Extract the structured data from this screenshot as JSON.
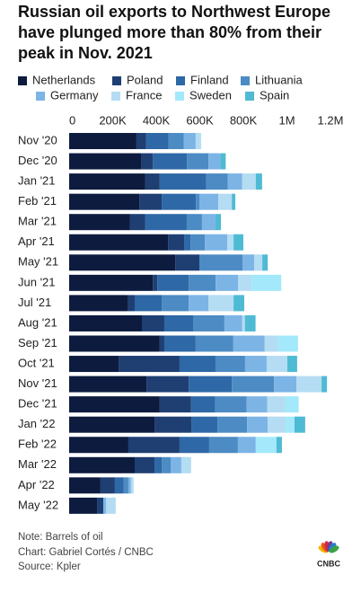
{
  "chart_data": {
    "type": "stacked-bar-horizontal",
    "title": "Russian oil exports to Northwest Europe have plunged more than 80% from their peak in Nov. 2021",
    "categories": [
      "Nov '20",
      "Dec '20",
      "Jan '21",
      "Feb '21",
      "Mar '21",
      "Apr '21",
      "May '21",
      "Jun '21",
      "Jul '21",
      "Aug '21",
      "Sep '21",
      "Oct '21",
      "Nov '21",
      "Dec '21",
      "Jan '22",
      "Feb '22",
      "Mar '22",
      "Apr '22",
      "May '22"
    ],
    "series": [
      {
        "name": "Netherlands",
        "color": "#0d1b3e",
        "values": [
          309000,
          330000,
          350000,
          322000,
          280000,
          454000,
          487000,
          384000,
          268000,
          334000,
          416000,
          227000,
          355000,
          416000,
          392000,
          272000,
          301000,
          144000,
          128000
        ]
      },
      {
        "name": "Poland",
        "color": "#1f3f73",
        "values": [
          45000,
          54000,
          66000,
          103000,
          70000,
          74000,
          111000,
          21000,
          33000,
          103000,
          21000,
          280000,
          194000,
          144000,
          169000,
          235000,
          91000,
          66000,
          29000
        ]
      },
      {
        "name": "Finland",
        "color": "#2e68a6",
        "values": [
          103000,
          157000,
          214000,
          157000,
          190000,
          29000,
          0,
          144000,
          124000,
          132000,
          144000,
          165000,
          198000,
          111000,
          120000,
          136000,
          33000,
          41000,
          0
        ]
      },
      {
        "name": "Lithuania",
        "color": "#4c8bc3",
        "values": [
          70000,
          99000,
          99000,
          16000,
          70000,
          66000,
          198000,
          124000,
          124000,
          144000,
          173000,
          136000,
          194000,
          144000,
          136000,
          132000,
          41000,
          21000,
          0
        ]
      },
      {
        "name": "Germany",
        "color": "#7cb4e6",
        "values": [
          54000,
          54000,
          66000,
          87000,
          62000,
          103000,
          54000,
          103000,
          91000,
          82000,
          144000,
          99000,
          103000,
          95000,
          95000,
          82000,
          49000,
          12000,
          12000
        ]
      },
      {
        "name": "France",
        "color": "#b4dcf2",
        "values": [
          25000,
          0,
          62000,
          62000,
          0,
          29000,
          37000,
          62000,
          115000,
          12000,
          62000,
          95000,
          115000,
          82000,
          82000,
          0,
          45000,
          12000,
          45000
        ]
      },
      {
        "name": "Sweden",
        "color": "#a3e8fb",
        "values": [
          0,
          0,
          0,
          0,
          0,
          0,
          0,
          136000,
          0,
          0,
          91000,
          0,
          0,
          62000,
          41000,
          95000,
          0,
          0,
          0
        ]
      },
      {
        "name": "Spain",
        "color": "#4fbad4",
        "values": [
          0,
          25000,
          29000,
          16000,
          25000,
          45000,
          25000,
          0,
          49000,
          49000,
          0,
          45000,
          25000,
          0,
          49000,
          25000,
          0,
          0,
          0
        ]
      }
    ],
    "xlim": [
      0,
      1200000
    ],
    "xticks": [
      0,
      {
        "value": 200000,
        "label": "200K"
      },
      {
        "value": 400000,
        "label": "400K"
      },
      {
        "value": 600000,
        "label": "600K"
      },
      {
        "value": 800000,
        "label": "800K"
      },
      {
        "value": 1000000,
        "label": "1M"
      },
      {
        "value": 1200000,
        "label": "1.2M"
      }
    ],
    "note": "Note: Barrels of oil",
    "credit": "Chart: Gabriel Cortés / CNBC",
    "source": "Source: Kpler",
    "logo": "CNBC"
  }
}
